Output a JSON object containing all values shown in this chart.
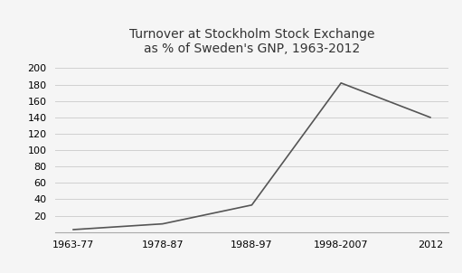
{
  "categories": [
    "1963-77",
    "1978-87",
    "1988-97",
    "1998-2007",
    "2012"
  ],
  "values": [
    3,
    10,
    33,
    182,
    140
  ],
  "line_color": "#555555",
  "title_line1": "Turnover at Stockholm Stock Exchange",
  "title_line2": "as % of Sweden's GNP, 1963-2012",
  "ylim": [
    0,
    210
  ],
  "yticks": [
    20,
    40,
    60,
    80,
    100,
    120,
    140,
    160,
    180,
    200
  ],
  "background_color": "#f5f5f5",
  "grid_color": "#d0d0d0",
  "title_fontsize": 10,
  "tick_fontsize": 8,
  "figsize": [
    5.11,
    3.02
  ],
  "dpi": 100
}
